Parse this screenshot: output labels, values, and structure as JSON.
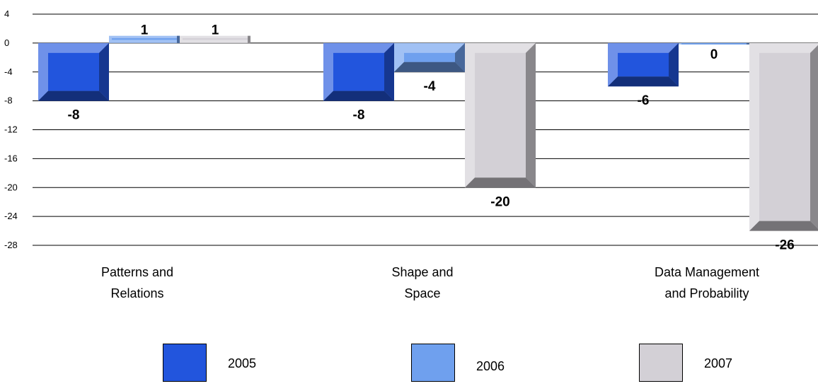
{
  "chart_data": {
    "type": "bar",
    "categories": [
      "Patterns and\nRelations",
      "Shape and\nSpace",
      "Data Management\nand Probability"
    ],
    "series": [
      {
        "name": "2005",
        "values": [
          -8,
          -8,
          -6
        ],
        "color": "#2255dd"
      },
      {
        "name": "2006",
        "values": [
          1,
          -4,
          0
        ],
        "color": "#6fa0ee"
      },
      {
        "name": "2007",
        "values": [
          1,
          -20,
          -26
        ],
        "color": "#d3d0d6"
      }
    ],
    "data_labels": [
      [
        "-8",
        "-8",
        "-6"
      ],
      [
        "1",
        "-4",
        "0"
      ],
      [
        "1",
        "-20",
        "-26"
      ]
    ],
    "ylim": [
      -28,
      4
    ],
    "yticks": [
      4,
      0,
      -4,
      -8,
      -12,
      -16,
      -20,
      -24,
      -28
    ],
    "grid": true,
    "legend_position": "bottom",
    "title": "",
    "xlabel": "",
    "ylabel": ""
  }
}
